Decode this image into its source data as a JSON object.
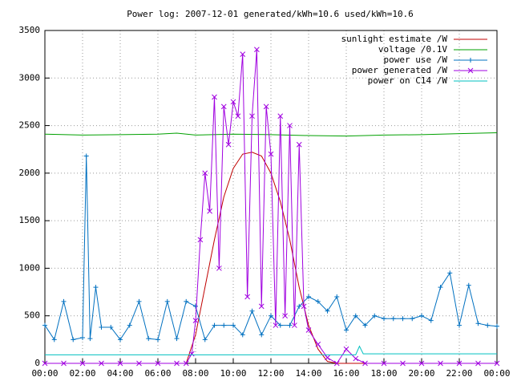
{
  "chart_data": {
    "type": "line",
    "title": "Power log: 2007-12-01 generated/kWh=10.6 used/kWh=10.6",
    "xlim": [
      0,
      24
    ],
    "ylim": [
      0,
      3500
    ],
    "xticks": [
      {
        "value": 0,
        "label": "00:00"
      },
      {
        "value": 2,
        "label": "02:00"
      },
      {
        "value": 4,
        "label": "04:00"
      },
      {
        "value": 6,
        "label": "06:00"
      },
      {
        "value": 8,
        "label": "08:00"
      },
      {
        "value": 10,
        "label": "10:00"
      },
      {
        "value": 12,
        "label": "12:00"
      },
      {
        "value": 14,
        "label": "14:00"
      },
      {
        "value": 16,
        "label": "16:00"
      },
      {
        "value": 18,
        "label": "18:00"
      },
      {
        "value": 20,
        "label": "20:00"
      },
      {
        "value": 22,
        "label": "22:00"
      },
      {
        "value": 24,
        "label": "00:00"
      }
    ],
    "yticks": [
      0,
      500,
      1000,
      1500,
      2000,
      2500,
      3000,
      3500
    ],
    "grid": true,
    "legend": "top right",
    "series": [
      {
        "name": "sunlight estimate /W",
        "color": "#c00000",
        "x": [
          0,
          7.5,
          8,
          8.5,
          9,
          9.5,
          10,
          10.5,
          11,
          11.5,
          12,
          12.5,
          13,
          13.5,
          14,
          14.5,
          15,
          15.5,
          24
        ],
        "values": [
          0,
          0,
          300,
          800,
          1300,
          1750,
          2050,
          2200,
          2220,
          2180,
          2000,
          1700,
          1300,
          800,
          400,
          150,
          20,
          0,
          0
        ]
      },
      {
        "name": "voltage /0.1V",
        "color": "#00a000",
        "x": [
          0,
          2,
          4,
          6,
          7,
          8,
          10,
          12,
          14,
          16,
          18,
          20,
          22,
          24
        ],
        "values": [
          2410,
          2400,
          2405,
          2410,
          2420,
          2400,
          2410,
          2405,
          2395,
          2390,
          2400,
          2405,
          2415,
          2425
        ]
      },
      {
        "name": "power use /W",
        "color": "#0070c0",
        "marker": "plus",
        "x": [
          0,
          0.5,
          1,
          1.5,
          2,
          2.2,
          2.4,
          2.7,
          3,
          3.5,
          4,
          4.5,
          5,
          5.5,
          6,
          6.5,
          7,
          7.5,
          8,
          8.5,
          9,
          9.5,
          10,
          10.5,
          11,
          11.5,
          12,
          12.5,
          13,
          13.5,
          14,
          14.5,
          15,
          15.5,
          16,
          16.5,
          17,
          17.5,
          18,
          18.5,
          19,
          19.5,
          20,
          20.5,
          21,
          21.5,
          22,
          22.5,
          23,
          23.5,
          24
        ],
        "values": [
          400,
          250,
          650,
          250,
          270,
          2180,
          260,
          800,
          380,
          380,
          250,
          400,
          650,
          260,
          250,
          650,
          260,
          650,
          600,
          250,
          400,
          400,
          400,
          300,
          550,
          300,
          500,
          400,
          400,
          600,
          700,
          650,
          550,
          700,
          350,
          500,
          400,
          500,
          470,
          470,
          470,
          470,
          500,
          450,
          800,
          950,
          400,
          820,
          420,
          400,
          390
        ]
      },
      {
        "name": "power generated /W",
        "color": "#a000e0",
        "marker": "cross",
        "x": [
          0,
          1,
          2,
          3,
          4,
          5,
          6,
          7,
          7.5,
          7.8,
          8,
          8.25,
          8.5,
          8.75,
          9,
          9.25,
          9.5,
          9.75,
          10,
          10.25,
          10.5,
          10.75,
          11,
          11.25,
          11.5,
          11.75,
          12,
          12.25,
          12.5,
          12.75,
          13,
          13.25,
          13.5,
          13.75,
          14,
          14.5,
          15,
          15.5,
          16,
          16.5,
          17,
          18,
          19,
          20,
          21,
          22,
          23,
          24
        ],
        "values": [
          0,
          0,
          0,
          0,
          0,
          0,
          0,
          0,
          0,
          100,
          450,
          1300,
          2000,
          1600,
          2800,
          1000,
          2700,
          2300,
          2750,
          2600,
          3250,
          700,
          2600,
          3300,
          600,
          2700,
          2200,
          400,
          2600,
          500,
          2500,
          400,
          2300,
          600,
          350,
          200,
          60,
          0,
          150,
          50,
          0,
          0,
          0,
          0,
          0,
          0,
          0,
          0
        ]
      },
      {
        "name": "power on C14 /W",
        "color": "#00c0c0",
        "x": [
          0,
          8,
          16.5,
          16.7,
          16.9,
          24
        ],
        "values": [
          90,
          90,
          90,
          180,
          100,
          100
        ]
      }
    ]
  }
}
